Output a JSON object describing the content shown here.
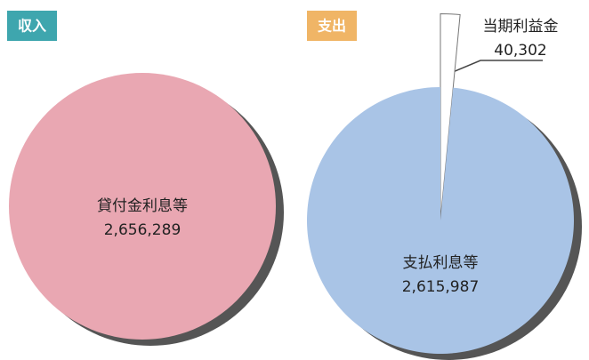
{
  "chart_data": [
    {
      "type": "pie",
      "title": "収入",
      "categories": [
        "貸付金利息等"
      ],
      "values": [
        2656289
      ],
      "value_labels": [
        "2,656,289"
      ],
      "colors": [
        "#e9a7b2"
      ],
      "title_color": "#3ea6ae"
    },
    {
      "type": "pie",
      "title": "支出",
      "categories": [
        "当期利益金",
        "支払利息等"
      ],
      "values": [
        40302,
        2615987
      ],
      "value_labels": [
        "40,302",
        "2,615,987"
      ],
      "colors": [
        "#ffffff",
        "#a9c4e6"
      ],
      "title_color": "#f0b566"
    }
  ]
}
